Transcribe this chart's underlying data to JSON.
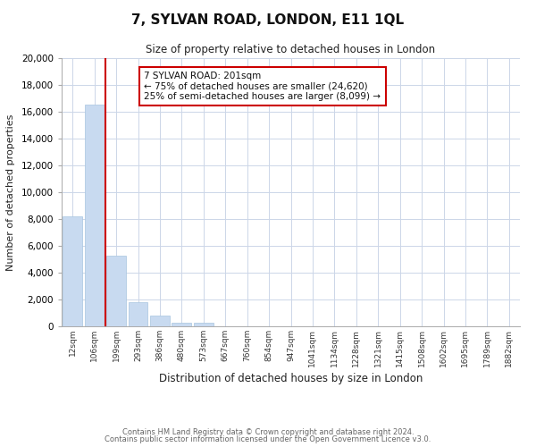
{
  "title": "7, SYLVAN ROAD, LONDON, E11 1QL",
  "subtitle": "Size of property relative to detached houses in London",
  "xlabel": "Distribution of detached houses by size in London",
  "ylabel": "Number of detached properties",
  "bar_color": "#c8daf0",
  "bar_edge_color": "#a8c4e0",
  "vline_color": "#cc0000",
  "vline_x_idx": 2,
  "categories": [
    "12sqm",
    "106sqm",
    "199sqm",
    "293sqm",
    "386sqm",
    "480sqm",
    "573sqm",
    "667sqm",
    "760sqm",
    "854sqm",
    "947sqm",
    "1041sqm",
    "1134sqm",
    "1228sqm",
    "1321sqm",
    "1415sqm",
    "1508sqm",
    "1602sqm",
    "1695sqm",
    "1789sqm",
    "1882sqm"
  ],
  "values": [
    8200,
    16500,
    5300,
    1800,
    800,
    300,
    300,
    0,
    0,
    0,
    0,
    0,
    0,
    0,
    0,
    0,
    0,
    0,
    0,
    0,
    0
  ],
  "ylim": [
    0,
    20000
  ],
  "yticks": [
    0,
    2000,
    4000,
    6000,
    8000,
    10000,
    12000,
    14000,
    16000,
    18000,
    20000
  ],
  "annotation_title": "7 SYLVAN ROAD: 201sqm",
  "annotation_line1": "← 75% of detached houses are smaller (24,620)",
  "annotation_line2": "25% of semi-detached houses are larger (8,099) →",
  "annotation_box_color": "#ffffff",
  "annotation_border_color": "#cc0000",
  "footer1": "Contains HM Land Registry data © Crown copyright and database right 2024.",
  "footer2": "Contains public sector information licensed under the Open Government Licence v3.0.",
  "background_color": "#ffffff",
  "grid_color": "#ccd6e8"
}
